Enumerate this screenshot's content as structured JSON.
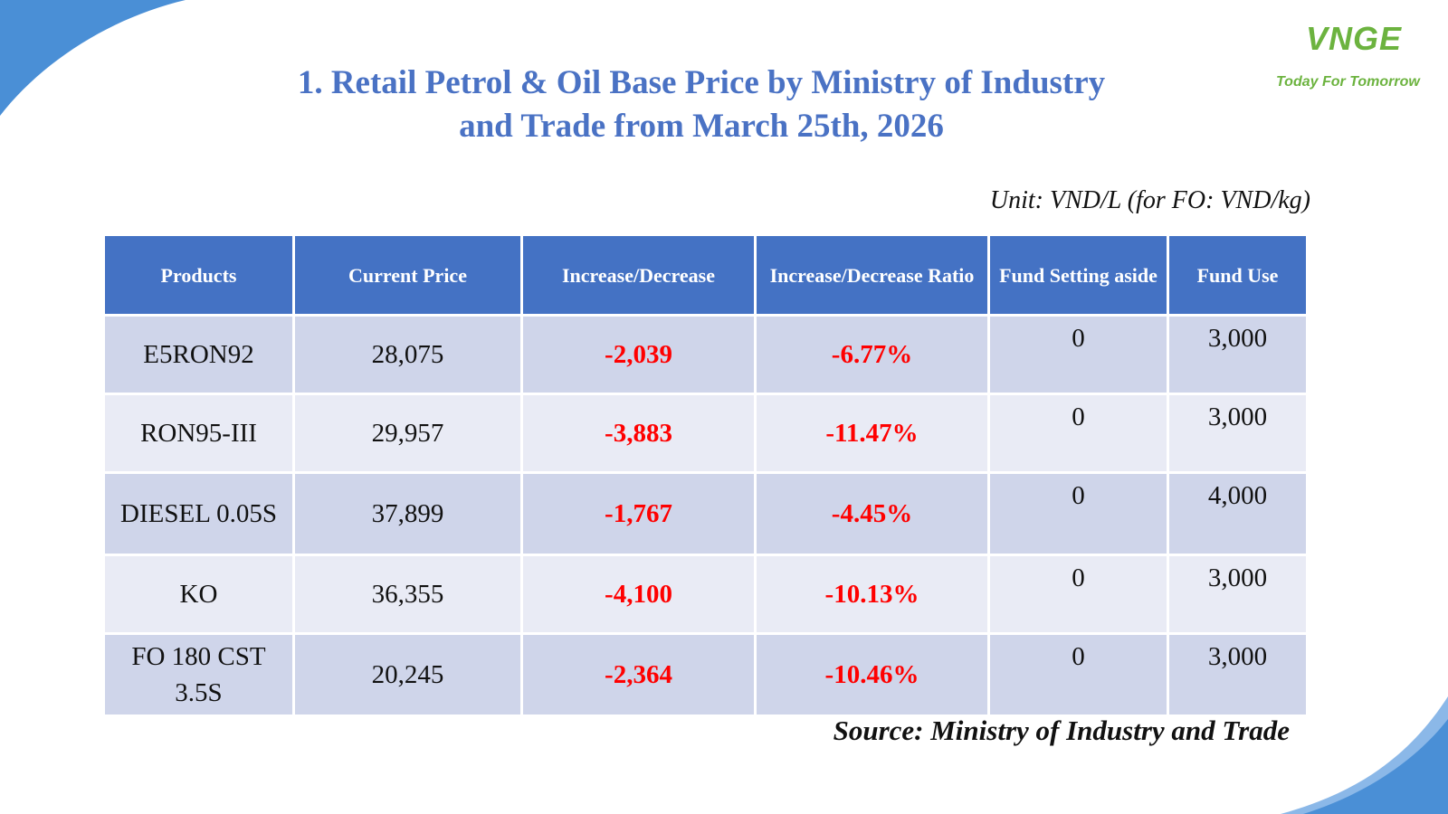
{
  "brand": {
    "logo_text": "VNGE",
    "tagline": "Today For Tomorrow",
    "colors": {
      "accent": "#4472c4",
      "title": "#4a72c4",
      "logo": "#6cb33f",
      "negative": "#ff0000"
    }
  },
  "title": {
    "line1": "1. Retail Petrol & Oil Base Price by Ministry of Industry",
    "line2": "and Trade from March 25th, 2026"
  },
  "unit_note": "Unit: VND/L (for FO: VND/kg)",
  "table": {
    "headers": [
      "Products",
      "Current Price",
      "Increase/Decrease",
      "Increase/Decrease Ratio",
      "Fund Setting aside",
      "Fund Use"
    ],
    "rows": [
      {
        "product": "E5RON92",
        "current_price": "28,075",
        "change": "-2,039",
        "ratio": "-6.77%",
        "fund_setting": "0",
        "fund_use": "3,000"
      },
      {
        "product": "RON95-III",
        "current_price": "29,957",
        "change": "-3,883",
        "ratio": "-11.47%",
        "fund_setting": "0",
        "fund_use": "3,000"
      },
      {
        "product": "DIESEL 0.05S",
        "current_price": "37,899",
        "change": "-1,767",
        "ratio": "-4.45%",
        "fund_setting": "0",
        "fund_use": "4,000"
      },
      {
        "product": "KO",
        "current_price": "36,355",
        "change": "-4,100",
        "ratio": "-10.13%",
        "fund_setting": "0",
        "fund_use": "3,000"
      },
      {
        "product": "FO 180 CST 3.5S",
        "current_price": "20,245",
        "change": "-2,364",
        "ratio": "-10.46%",
        "fund_setting": "0",
        "fund_use": "3,000"
      }
    ]
  },
  "source": "Source: Ministry of Industry and Trade"
}
